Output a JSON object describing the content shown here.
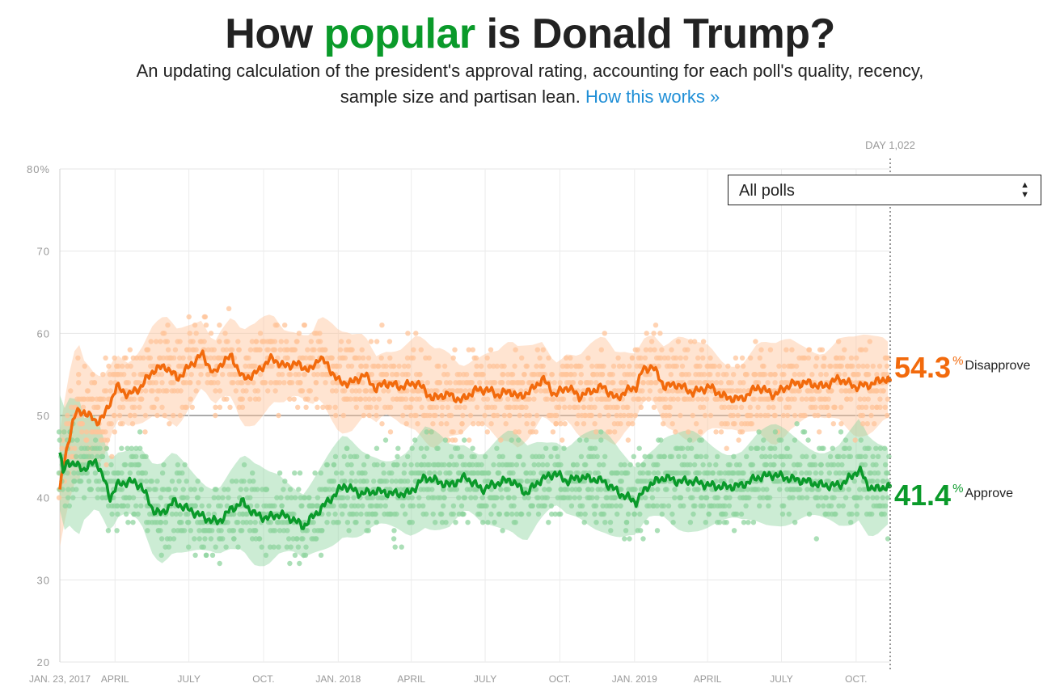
{
  "header": {
    "title_pre": "How ",
    "title_highlight": "popular",
    "title_post": " is Donald Trump?",
    "subtitle": "An updating calculation of the president's approval rating, accounting for each poll's quality, recency, sample size and partisan lean.",
    "link_label": "How this works »"
  },
  "filter": {
    "selected": "All polls"
  },
  "day_label": "DAY 1,022",
  "final_values": {
    "disapprove": {
      "value": "54.3",
      "unit": "%",
      "label": "Disapprove"
    },
    "approve": {
      "value": "41.4",
      "unit": "%",
      "label": "Approve"
    }
  },
  "colors": {
    "approve": "#0a9a2a",
    "disapprove": "#f26a0c",
    "approve_light": "#8fd49f",
    "disapprove_light": "#ffc49a"
  },
  "chart_data": {
    "type": "line",
    "x_unit": "days since inauguration",
    "xlim": [
      0,
      1022
    ],
    "ylim": [
      20,
      80
    ],
    "yticks": [
      20,
      30,
      40,
      50,
      60,
      70,
      80
    ],
    "ytick_labels": [
      "20",
      "30",
      "40",
      "50",
      "60",
      "70",
      "80%"
    ],
    "xticks": [
      {
        "day": 0,
        "label": "JAN. 23, 2017"
      },
      {
        "day": 68,
        "label": "APRIL"
      },
      {
        "day": 159,
        "label": "JULY"
      },
      {
        "day": 251,
        "label": "OCT."
      },
      {
        "day": 343,
        "label": "JAN. 2018"
      },
      {
        "day": 433,
        "label": "APRIL"
      },
      {
        "day": 524,
        "label": "JULY"
      },
      {
        "day": 616,
        "label": "OCT."
      },
      {
        "day": 708,
        "label": "JAN. 2019"
      },
      {
        "day": 798,
        "label": "APRIL"
      },
      {
        "day": 889,
        "label": "JULY"
      },
      {
        "day": 981,
        "label": "OCT."
      }
    ],
    "grid": true,
    "series": [
      {
        "name": "Disapprove",
        "x": [
          0,
          5,
          10,
          15,
          20,
          30,
          45,
          55,
          70,
          85,
          100,
          115,
          130,
          145,
          160,
          175,
          190,
          200,
          212,
          225,
          240,
          250,
          262,
          275,
          290,
          310,
          320,
          330,
          345,
          360,
          375,
          390,
          400,
          420,
          440,
          460,
          470,
          480,
          495,
          510,
          525,
          540,
          555,
          565,
          580,
          595,
          610,
          625,
          640,
          655,
          670,
          685,
          695,
          710,
          718,
          730,
          745,
          760,
          780,
          800,
          820,
          840,
          860,
          880,
          900,
          920,
          940,
          960,
          980,
          1000,
          1015,
          1022
        ],
        "y": [
          41.0,
          44.0,
          46.5,
          49.0,
          50.3,
          50.5,
          49.2,
          50.0,
          53.5,
          52.5,
          53.5,
          55.5,
          56.0,
          54.5,
          56.0,
          57.5,
          55.0,
          56.5,
          57.2,
          54.5,
          55.0,
          56.0,
          57.0,
          56.0,
          56.3,
          55.5,
          57.2,
          56.0,
          54.0,
          54.0,
          55.0,
          53.2,
          54.0,
          53.5,
          54.0,
          52.0,
          52.5,
          52.5,
          51.8,
          53.0,
          53.2,
          52.5,
          53.0,
          52.2,
          53.0,
          54.5,
          52.5,
          53.5,
          52.3,
          53.0,
          53.5,
          52.0,
          52.8,
          53.5,
          55.5,
          56.0,
          53.5,
          53.8,
          52.8,
          53.5,
          52.2,
          52.0,
          53.5,
          52.5,
          53.8,
          54.0,
          53.5,
          54.5,
          53.5,
          53.8,
          54.5,
          54.3
        ]
      },
      {
        "name": "Approve",
        "x": [
          0,
          4,
          10,
          18,
          30,
          45,
          55,
          62,
          70,
          85,
          100,
          115,
          125,
          140,
          160,
          180,
          195,
          210,
          225,
          240,
          255,
          270,
          285,
          300,
          320,
          335,
          350,
          370,
          390,
          410,
          430,
          450,
          465,
          480,
          500,
          520,
          540,
          555,
          575,
          590,
          610,
          625,
          640,
          655,
          670,
          690,
          710,
          725,
          745,
          760,
          780,
          800,
          820,
          840,
          860,
          880,
          900,
          920,
          940,
          960,
          975,
          985,
          995,
          1005,
          1015,
          1022
        ],
        "y": [
          45.5,
          43.0,
          44.5,
          44.0,
          43.5,
          44.5,
          42.0,
          40.0,
          41.5,
          42.0,
          41.5,
          38.5,
          38.0,
          39.5,
          38.5,
          37.5,
          37.0,
          38.5,
          39.5,
          38.0,
          37.5,
          38.0,
          37.5,
          36.5,
          38.5,
          40.0,
          41.5,
          40.5,
          40.8,
          40.5,
          40.5,
          42.5,
          42.0,
          41.5,
          42.5,
          41.0,
          41.8,
          42.2,
          40.5,
          42.0,
          43.0,
          42.0,
          42.5,
          42.3,
          42.0,
          40.5,
          39.5,
          41.5,
          42.5,
          42.0,
          42.0,
          41.5,
          41.3,
          41.5,
          42.5,
          42.8,
          42.3,
          42.0,
          41.5,
          41.5,
          42.5,
          43.5,
          41.5,
          41.0,
          41.3,
          41.4
        ]
      }
    ]
  }
}
